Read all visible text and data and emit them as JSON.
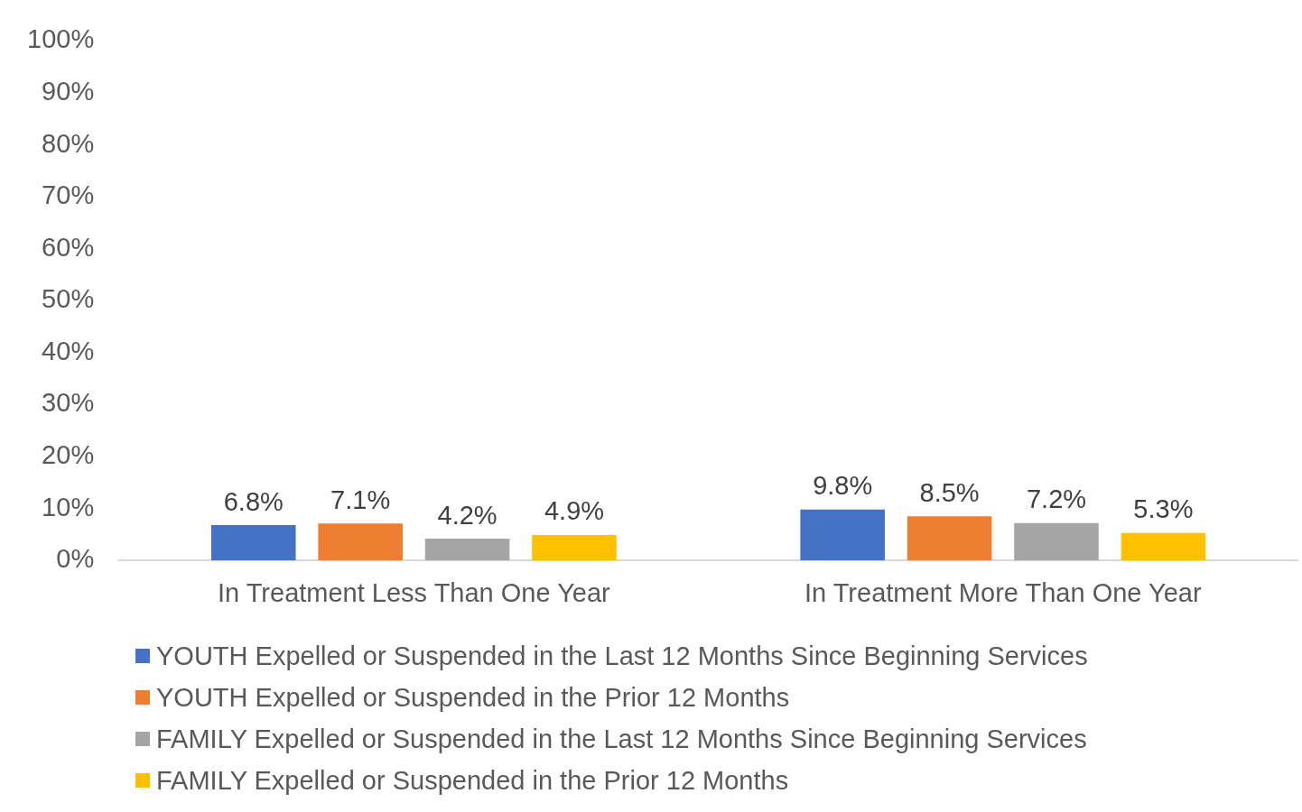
{
  "chart_data": {
    "type": "bar",
    "categories": [
      "In Treatment Less Than One Year",
      "In Treatment More Than One Year"
    ],
    "series": [
      {
        "name": "YOUTH Expelled or Suspended in the Last 12 Months Since Beginning Services",
        "color": "#4472c4",
        "values": [
          6.8,
          9.8
        ],
        "value_labels": [
          "6.8%",
          "9.8%"
        ]
      },
      {
        "name": "YOUTH Expelled or Suspended in the Prior 12 Months",
        "color": "#ed7d31",
        "values": [
          7.1,
          8.5
        ],
        "value_labels": [
          "7.1%",
          "8.5%"
        ]
      },
      {
        "name": "FAMILY Expelled or Suspended in the Last 12 Months Since Beginning Services",
        "color": "#a5a5a5",
        "values": [
          4.2,
          7.2
        ],
        "value_labels": [
          "4.2%",
          "7.2%"
        ]
      },
      {
        "name": "FAMILY Expelled or Suspended in the Prior 12 Months",
        "color": "#ffc000",
        "values": [
          4.9,
          5.3
        ],
        "value_labels": [
          "4.9%",
          "5.3%"
        ]
      }
    ],
    "ylim": [
      0,
      100
    ],
    "yticks": [
      {
        "value": 0,
        "label": "0%"
      },
      {
        "value": 10,
        "label": "10%"
      },
      {
        "value": 20,
        "label": "20%"
      },
      {
        "value": 30,
        "label": "30%"
      },
      {
        "value": 40,
        "label": "40%"
      },
      {
        "value": 50,
        "label": "50%"
      },
      {
        "value": 60,
        "label": "60%"
      },
      {
        "value": 70,
        "label": "70%"
      },
      {
        "value": 80,
        "label": "80%"
      },
      {
        "value": 90,
        "label": "90%"
      },
      {
        "value": 100,
        "label": "100%"
      }
    ],
    "legend": "bottom"
  }
}
